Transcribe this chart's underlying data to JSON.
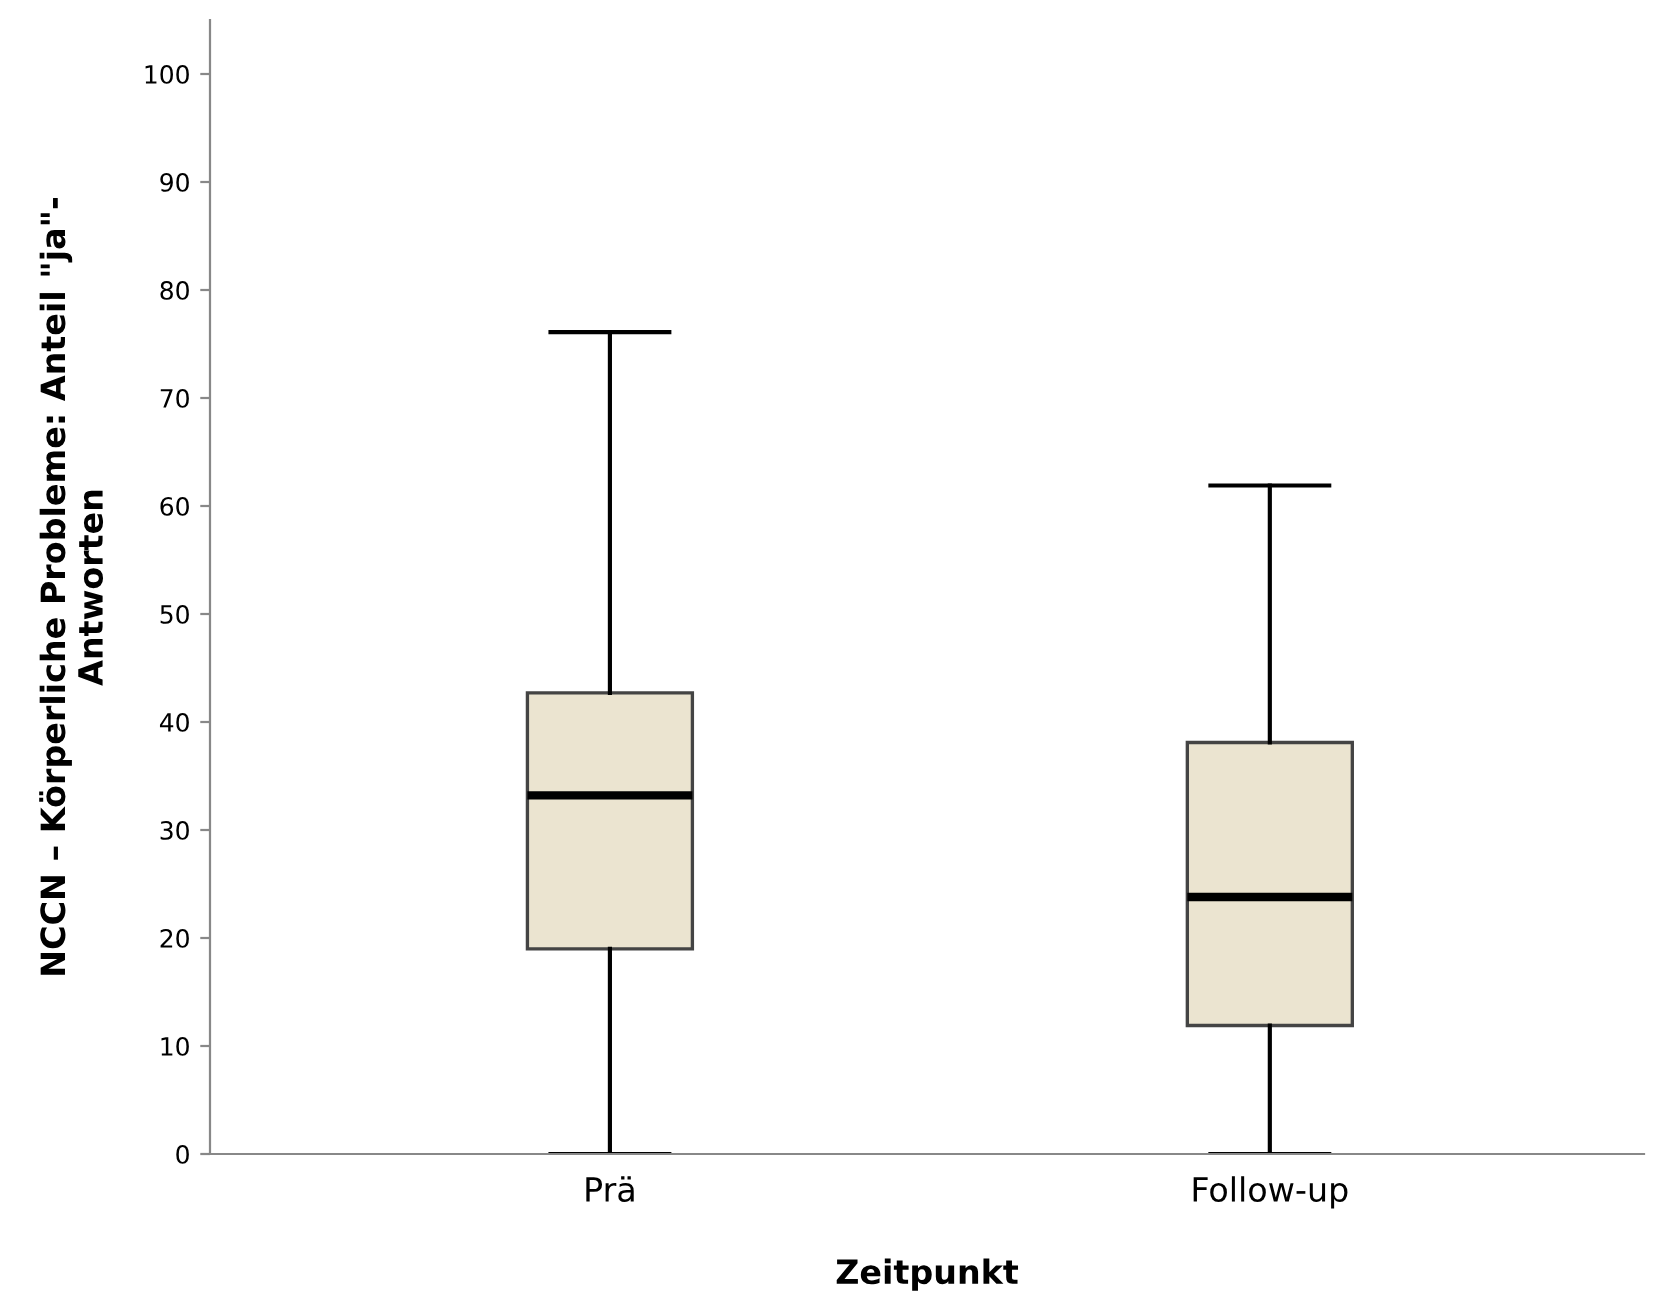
{
  "chart_data": {
    "type": "box",
    "xlabel": "Zeitpunkt",
    "ylabel": "NCCN – Körperliche Probleme: Anteil \"ja\"-\nAntworten",
    "categories": [
      "Prä",
      "Follow-up"
    ],
    "boxes": [
      {
        "low": 0,
        "q1": 19.0,
        "median": 33.2,
        "q3": 42.7,
        "high": 76.1
      },
      {
        "low": 0,
        "q1": 11.9,
        "median": 23.8,
        "q3": 38.1,
        "high": 61.9
      }
    ],
    "color": "#ebe4d0",
    "ylim": [
      0,
      105
    ],
    "yticks": [
      0,
      10,
      20,
      30,
      40,
      50,
      60,
      70,
      80,
      90,
      100
    ],
    "grid": false
  }
}
